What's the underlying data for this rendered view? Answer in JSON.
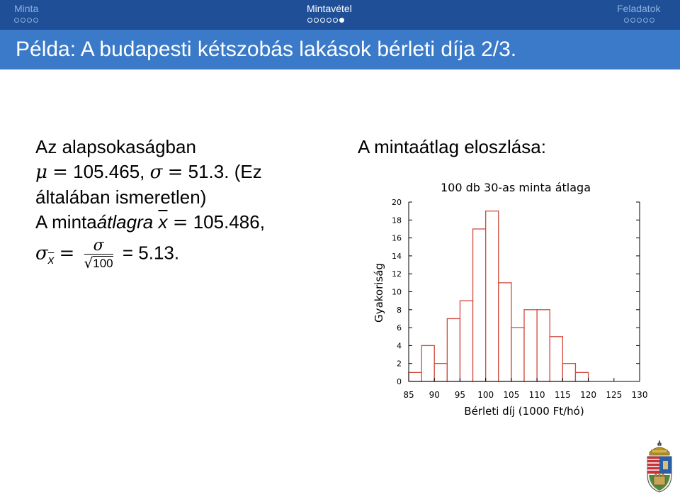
{
  "nav": {
    "sections": [
      {
        "label": "Minta",
        "dots": 4,
        "filled": -1,
        "active": false
      },
      {
        "label": "Mintavétel",
        "dots": 6,
        "filled": 5,
        "active": true
      },
      {
        "label": "Feladatok",
        "dots": 5,
        "filled": -1,
        "active": false
      }
    ]
  },
  "title": "Példa: A budapesti kétszobás lakások bérleti díja 2/3.",
  "left": {
    "line1": "Az alapsokaságban",
    "mu_symbol": "μ",
    "eq": "=",
    "mu_value": "105.465,",
    "sigma_symbol": "σ",
    "sigma_value": "51.3.",
    "paren_open": "(Ez",
    "line3": "általában ismeretlen)",
    "line4_prefix": "A minta",
    "line4_italic": "átlagra",
    "xbar_symbol": "x",
    "xbar_value": "105.486,",
    "sigma_x_sub": "x",
    "frac_num": "σ",
    "frac_den": "100",
    "sigma_x_value": "= 5.13."
  },
  "right_caption": "A mintaátlag eloszlása:",
  "chart_data": {
    "type": "bar",
    "title": "100 db 30-as minta átlaga",
    "xlabel": "Bérleti díj (1000 Ft/hó)",
    "ylabel": "Gyakoriság",
    "bin_edges": [
      85,
      87.5,
      90,
      92.5,
      95,
      97.5,
      100,
      102.5,
      105,
      107.5,
      110,
      112.5,
      115,
      117.5,
      120,
      122.5,
      125,
      127.5,
      130
    ],
    "values": [
      1,
      4,
      2,
      7,
      9,
      17,
      19,
      11,
      6,
      8,
      8,
      5,
      2,
      1,
      0,
      0,
      0,
      0
    ],
    "xticks": [
      85,
      90,
      95,
      100,
      105,
      110,
      115,
      120,
      125,
      130
    ],
    "yticks": [
      0,
      2,
      4,
      6,
      8,
      10,
      12,
      14,
      16,
      18,
      20
    ],
    "xlim": [
      85,
      130
    ],
    "ylim": [
      0,
      20
    ],
    "grid": false,
    "bar_color": "#d04a3c"
  },
  "colors": {
    "navbar": "#1e4f97",
    "title_bar": "#3a7ac8",
    "nav_inactive": "#8fb0de"
  },
  "logo": {
    "name": "university-crest"
  }
}
